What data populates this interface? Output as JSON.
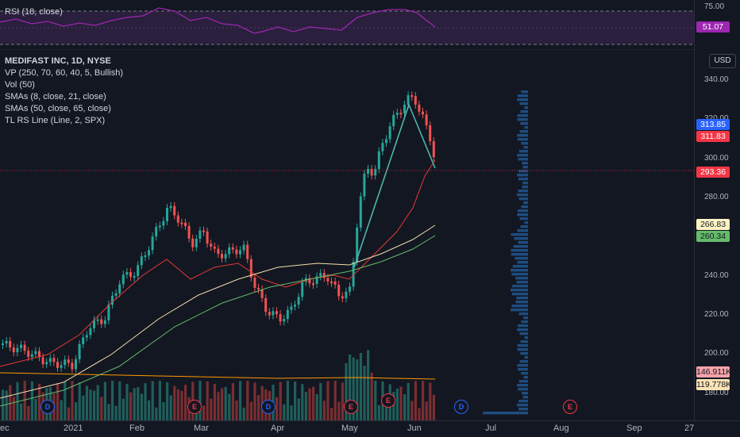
{
  "rsi": {
    "label": "RSI (18, close)",
    "upper_level": "75.00",
    "value": "51.07"
  },
  "legend": {
    "symbol": "MEDIFAST INC, 1D, NYSE",
    "lines": [
      "VP (250, 70, 60, 40, 5, Bullish)",
      "Vol (50)",
      "SMAs (8, close, 21, close)",
      "SMAs (50, close, 65, close)",
      "TL RS Line (Line, 2, SPX)"
    ]
  },
  "currency_button": "USD",
  "price_axis": {
    "ticks": [
      "340.00",
      "320.00",
      "300.00",
      "280.00",
      "240.00",
      "220.00",
      "200.00",
      "180.00"
    ],
    "tags": [
      {
        "label": "313.85",
        "color": "#2962ff",
        "text_color": "#ffffff"
      },
      {
        "label": "311.83",
        "color": "#f23645",
        "text_color": "#ffffff"
      },
      {
        "label": "293.36",
        "color": "#f23645",
        "text_color": "#ffffff"
      },
      {
        "label": "266.83",
        "color": "#fff3c4",
        "text_color": "#131722"
      },
      {
        "label": "260.34",
        "color": "#66bb6a",
        "text_color": "#131722"
      },
      {
        "label": "146.911K",
        "color": "#f5a3a9",
        "text_color": "#131722"
      },
      {
        "label": "119.778K",
        "color": "#fbe3b4",
        "text_color": "#131722"
      }
    ]
  },
  "time_axis": [
    "ec",
    "2021",
    "Feb",
    "Mar",
    "Apr",
    "May",
    "Jun",
    "Jul",
    "Aug",
    "Sep",
    "27"
  ],
  "events": [
    {
      "type": "div",
      "label": "D"
    },
    {
      "type": "earn",
      "label": "E"
    },
    {
      "type": "div",
      "label": "D"
    },
    {
      "type": "earn",
      "label": "E"
    },
    {
      "type": "earn",
      "label": "E"
    },
    {
      "type": "div",
      "label": "D"
    },
    {
      "type": "earn",
      "label": "E"
    }
  ],
  "colors": {
    "up": "#26a69a",
    "down": "#ef5350",
    "rsi_line": "#9c27b0",
    "sma_fast": "#2962ff",
    "sma_21": "#e53935",
    "sma_50": "#f5deaa",
    "sma_65": "#66bb6a",
    "volume_profile": "#2962ff"
  }
}
